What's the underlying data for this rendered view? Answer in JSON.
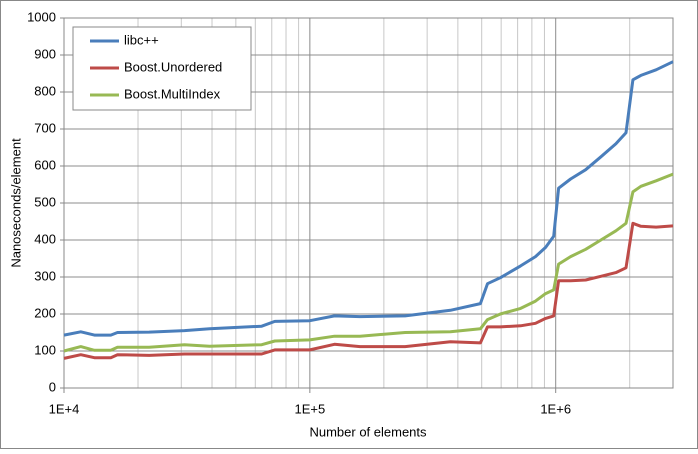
{
  "chart_data": {
    "type": "line",
    "x_label": "Number of elements",
    "y_label": "Nanoseconds/element",
    "x": [
      10000,
      11700,
      13300,
      15500,
      16500,
      22200,
      30900,
      39100,
      63700,
      72000,
      100000,
      126000,
      160000,
      244000,
      373000,
      494000,
      528000,
      596000,
      720000,
      828000,
      910000,
      981000,
      1028000,
      1150000,
      1325000,
      1527000,
      1758000,
      1932000,
      2060000,
      2220000,
      2560000,
      3000000
    ],
    "series": [
      {
        "name": "libc++",
        "color": "#4a7ebb",
        "values": [
          143,
          152,
          143,
          143,
          150,
          151,
          155,
          160,
          167,
          180,
          182,
          195,
          193,
          195,
          210,
          228,
          282,
          298,
          330,
          355,
          380,
          410,
          540,
          565,
          590,
          625,
          660,
          690,
          833,
          845,
          860,
          882
        ]
      },
      {
        "name": "Boost.Unordered",
        "color": "#be4b48",
        "values": [
          80,
          90,
          82,
          82,
          90,
          88,
          92,
          92,
          92,
          103,
          103,
          118,
          112,
          112,
          125,
          122,
          165,
          165,
          168,
          175,
          188,
          195,
          290,
          290,
          292,
          302,
          312,
          325,
          445,
          437,
          435,
          438
        ]
      },
      {
        "name": "Boost.MultiIndex",
        "color": "#98b954",
        "values": [
          100,
          112,
          102,
          102,
          110,
          110,
          117,
          113,
          117,
          127,
          130,
          140,
          140,
          150,
          152,
          160,
          185,
          200,
          215,
          235,
          255,
          265,
          335,
          355,
          375,
          400,
          425,
          445,
          530,
          545,
          560,
          578
        ]
      }
    ],
    "xlim": [
      10000,
      3000000
    ],
    "log_x": true,
    "xticks": [
      {
        "value": 10000,
        "label": "1E+4"
      },
      {
        "value": 100000,
        "label": "1E+5"
      },
      {
        "value": 1000000,
        "label": "1E+6"
      }
    ],
    "ylim": [
      0,
      1000
    ],
    "yticks": [
      0,
      100,
      200,
      300,
      400,
      500,
      600,
      700,
      800,
      900,
      1000
    ],
    "grid": true,
    "minor_grid": true,
    "legend": "upper left"
  }
}
